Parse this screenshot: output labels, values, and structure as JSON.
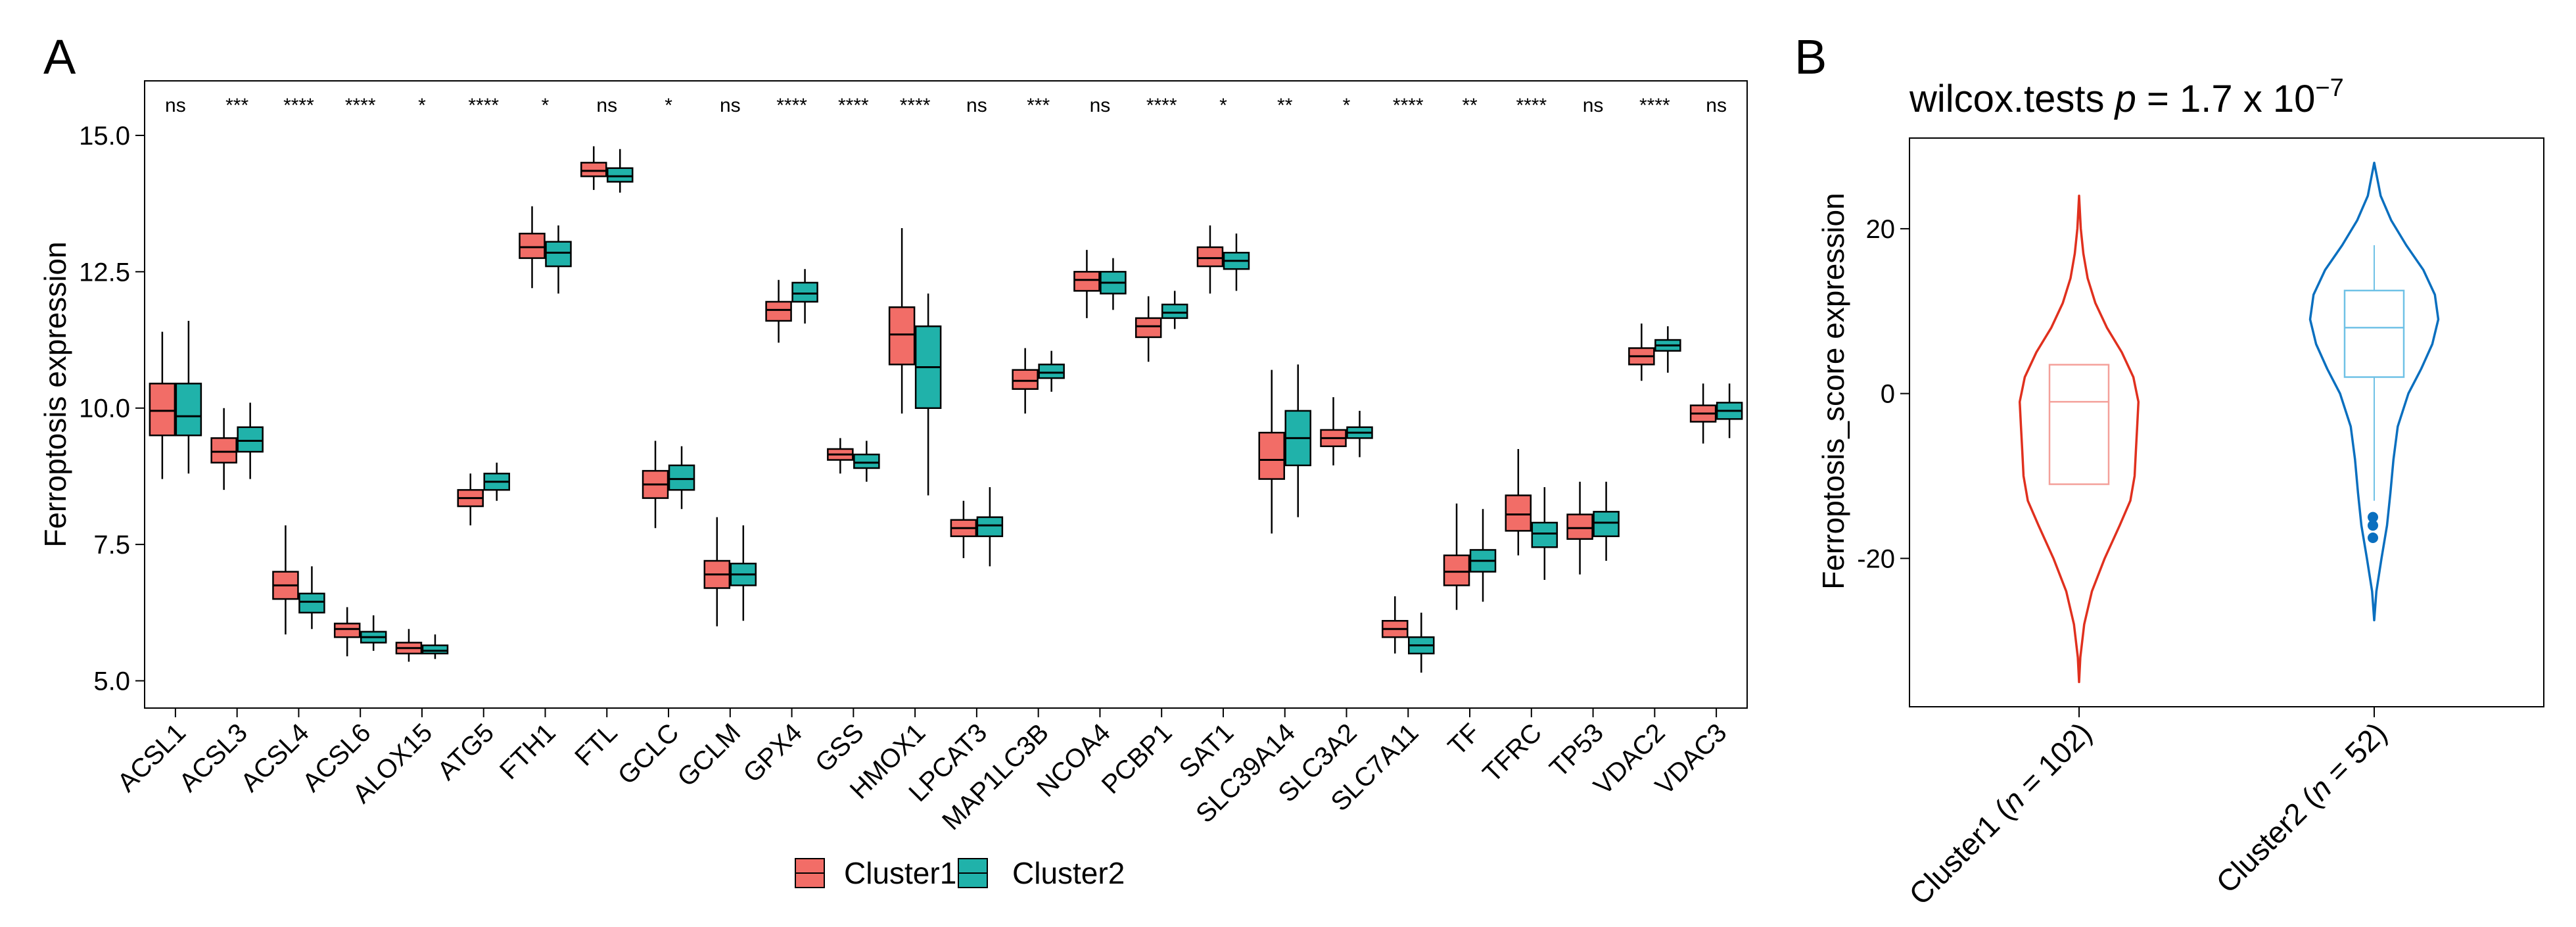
{
  "panel_a": {
    "label": "A",
    "legend_title": "",
    "legend": [
      {
        "name": "Cluster1",
        "color": "#F26D67"
      },
      {
        "name": "Cluster2",
        "color": "#20B2AA"
      }
    ]
  },
  "panel_b": {
    "label": "B",
    "title_main": "wilcox.tests",
    "title_p": "p",
    "title_eq": " = 1.7 x 10",
    "title_exp": "−7",
    "xlabels": [
      {
        "prefix": "Cluster1 (",
        "n": "n",
        "suffix": " = 102)"
      },
      {
        "prefix": "Cluster2 (",
        "n": "n",
        "suffix": " = 52)"
      }
    ]
  },
  "chart_data": [
    {
      "type": "box",
      "title": "",
      "xlabel": "",
      "ylabel": "Ferroptosis expression",
      "ylim": [
        4.5,
        16.0
      ],
      "yticks": [
        5.0,
        7.5,
        10.0,
        12.5,
        15.0
      ],
      "ytick_labels": [
        "5.0",
        "7.5",
        "10.0",
        "12.5",
        "15.0"
      ],
      "series_names": [
        "Cluster1",
        "Cluster2"
      ],
      "colors": [
        "#F26D67",
        "#20B2AA"
      ],
      "categories": [
        "ACSL1",
        "ACSL3",
        "ACSL4",
        "ACSL6",
        "ALOX15",
        "ATG5",
        "FTH1",
        "FTL",
        "GCLC",
        "GCLM",
        "GPX4",
        "GSS",
        "HMOX1",
        "LPCAT3",
        "MAP1LC3B",
        "NCOA4",
        "PCBP1",
        "SAT1",
        "SLC39A14",
        "SLC3A2",
        "SLC7A11",
        "TF",
        "TFRC",
        "TP53",
        "VDAC2",
        "VDAC3"
      ],
      "significance": [
        "ns",
        "***",
        "****",
        "****",
        "*",
        "****",
        "*",
        "ns",
        "*",
        "ns",
        "****",
        "****",
        "****",
        "ns",
        "***",
        "ns",
        "****",
        "*",
        "**",
        "*",
        "****",
        "**",
        "****",
        "ns",
        "****",
        "ns"
      ],
      "boxes": [
        [
          [
            8.7,
            9.5,
            9.95,
            10.45,
            11.4
          ],
          [
            8.8,
            9.5,
            9.85,
            10.45,
            11.6
          ]
        ],
        [
          [
            8.5,
            9.0,
            9.2,
            9.45,
            10.0
          ],
          [
            8.7,
            9.2,
            9.4,
            9.65,
            10.1
          ]
        ],
        [
          [
            5.85,
            6.5,
            6.75,
            7.0,
            7.85
          ],
          [
            5.95,
            6.25,
            6.45,
            6.6,
            7.1
          ]
        ],
        [
          [
            5.45,
            5.8,
            5.95,
            6.05,
            6.35
          ],
          [
            5.55,
            5.7,
            5.8,
            5.9,
            6.2
          ]
        ],
        [
          [
            5.35,
            5.5,
            5.6,
            5.7,
            5.95
          ],
          [
            5.4,
            5.5,
            5.55,
            5.65,
            5.85
          ]
        ],
        [
          [
            7.85,
            8.2,
            8.35,
            8.5,
            8.8
          ],
          [
            8.3,
            8.5,
            8.65,
            8.8,
            9.0
          ]
        ],
        [
          [
            12.2,
            12.75,
            12.95,
            13.2,
            13.7
          ],
          [
            12.1,
            12.6,
            12.85,
            13.05,
            13.35
          ]
        ],
        [
          [
            14.0,
            14.25,
            14.35,
            14.5,
            14.8
          ],
          [
            13.95,
            14.15,
            14.25,
            14.4,
            14.75
          ]
        ],
        [
          [
            7.8,
            8.35,
            8.6,
            8.85,
            9.4
          ],
          [
            8.15,
            8.5,
            8.7,
            8.95,
            9.3
          ]
        ],
        [
          [
            6.0,
            6.7,
            6.95,
            7.2,
            8.0
          ],
          [
            6.1,
            6.75,
            6.95,
            7.15,
            7.85
          ]
        ],
        [
          [
            11.2,
            11.6,
            11.8,
            11.95,
            12.35
          ],
          [
            11.55,
            11.95,
            12.1,
            12.3,
            12.55
          ]
        ],
        [
          [
            8.8,
            9.05,
            9.15,
            9.25,
            9.45
          ],
          [
            8.65,
            8.9,
            9.0,
            9.15,
            9.4
          ]
        ],
        [
          [
            9.9,
            10.8,
            11.35,
            11.85,
            13.3
          ],
          [
            8.4,
            10.0,
            10.75,
            11.5,
            12.1
          ]
        ],
        [
          [
            7.25,
            7.65,
            7.8,
            7.95,
            8.3
          ],
          [
            7.1,
            7.65,
            7.85,
            8.0,
            8.55
          ]
        ],
        [
          [
            9.9,
            10.35,
            10.5,
            10.7,
            11.1
          ],
          [
            10.3,
            10.55,
            10.65,
            10.8,
            11.05
          ]
        ],
        [
          [
            11.65,
            12.15,
            12.35,
            12.5,
            12.9
          ],
          [
            11.8,
            12.1,
            12.3,
            12.5,
            12.75
          ]
        ],
        [
          [
            10.85,
            11.3,
            11.5,
            11.65,
            12.05
          ],
          [
            11.45,
            11.65,
            11.75,
            11.9,
            12.15
          ]
        ],
        [
          [
            12.1,
            12.6,
            12.75,
            12.95,
            13.35
          ],
          [
            12.15,
            12.55,
            12.7,
            12.85,
            13.2
          ]
        ],
        [
          [
            7.7,
            8.7,
            9.05,
            9.55,
            10.7
          ],
          [
            8.0,
            8.95,
            9.45,
            9.95,
            10.8
          ]
        ],
        [
          [
            8.95,
            9.3,
            9.45,
            9.6,
            10.2
          ],
          [
            9.1,
            9.45,
            9.55,
            9.65,
            9.95
          ]
        ],
        [
          [
            5.5,
            5.8,
            5.95,
            6.1,
            6.55
          ],
          [
            5.15,
            5.5,
            5.65,
            5.8,
            6.25
          ]
        ],
        [
          [
            6.3,
            6.75,
            7.0,
            7.3,
            8.25
          ],
          [
            6.45,
            7.0,
            7.2,
            7.4,
            8.15
          ]
        ],
        [
          [
            7.3,
            7.75,
            8.05,
            8.4,
            9.25
          ],
          [
            6.85,
            7.45,
            7.7,
            7.9,
            8.55
          ]
        ],
        [
          [
            6.95,
            7.6,
            7.8,
            8.05,
            8.65
          ],
          [
            7.2,
            7.65,
            7.9,
            8.1,
            8.65
          ]
        ],
        [
          [
            10.5,
            10.8,
            10.95,
            11.1,
            11.55
          ],
          [
            10.65,
            11.05,
            11.15,
            11.25,
            11.5
          ]
        ],
        [
          [
            9.35,
            9.75,
            9.9,
            10.05,
            10.45
          ],
          [
            9.45,
            9.8,
            9.95,
            10.1,
            10.45
          ]
        ]
      ]
    },
    {
      "type": "violin",
      "title": "wilcox.tests p = 1.7 x 10^-7",
      "xlabel": "",
      "ylabel": "Ferroptosis_score expression",
      "ylim": [
        -38,
        31
      ],
      "yticks": [
        -20,
        0,
        20
      ],
      "ytick_labels": [
        "-20",
        "0",
        "20"
      ],
      "categories": [
        "Cluster1 (n = 102)",
        "Cluster2 (n = 52)"
      ],
      "colors": [
        "#E0301E",
        "#0A6FBF"
      ],
      "box_colors": [
        "#F4A09A",
        "#6FC1E6"
      ],
      "groups": [
        {
          "name": "Cluster1",
          "min": -35,
          "max": 24,
          "box": {
            "q1": -11,
            "median": -1,
            "q3": 3.5
          },
          "whisker": [
            null,
            null
          ],
          "outliers": [],
          "density": [
            [
              -35,
              0.0
            ],
            [
              -32,
              0.3
            ],
            [
              -28,
              1.2
            ],
            [
              -24,
              3.0
            ],
            [
              -20,
              6.0
            ],
            [
              -16,
              9.5
            ],
            [
              -13,
              12.0
            ],
            [
              -10,
              13.0
            ],
            [
              -7,
              13.3
            ],
            [
              -4,
              13.6
            ],
            [
              -1,
              13.9
            ],
            [
              2,
              12.7
            ],
            [
              5,
              10.0
            ],
            [
              8,
              6.5
            ],
            [
              11,
              3.8
            ],
            [
              14,
              2.0
            ],
            [
              17,
              1.0
            ],
            [
              20,
              0.4
            ],
            [
              24,
              0.0
            ]
          ]
        },
        {
          "name": "Cluster2",
          "min": -27.5,
          "max": 28,
          "box": {
            "q1": 2,
            "median": 8,
            "q3": 12.5
          },
          "whisker": [
            -13,
            18
          ],
          "outliers": [
            -15,
            -16,
            -17.5
          ],
          "density": [
            [
              -27.5,
              0.0
            ],
            [
              -24,
              0.5
            ],
            [
              -20,
              1.7
            ],
            [
              -16,
              3.0
            ],
            [
              -12,
              3.8
            ],
            [
              -8,
              4.5
            ],
            [
              -4,
              5.5
            ],
            [
              0,
              8.0
            ],
            [
              3,
              11.0
            ],
            [
              6,
              13.6
            ],
            [
              9,
              15.0
            ],
            [
              12,
              14.2
            ],
            [
              15,
              11.5
            ],
            [
              18,
              7.5
            ],
            [
              21,
              4.0
            ],
            [
              24,
              1.5
            ],
            [
              28,
              0.0
            ]
          ]
        }
      ]
    }
  ]
}
